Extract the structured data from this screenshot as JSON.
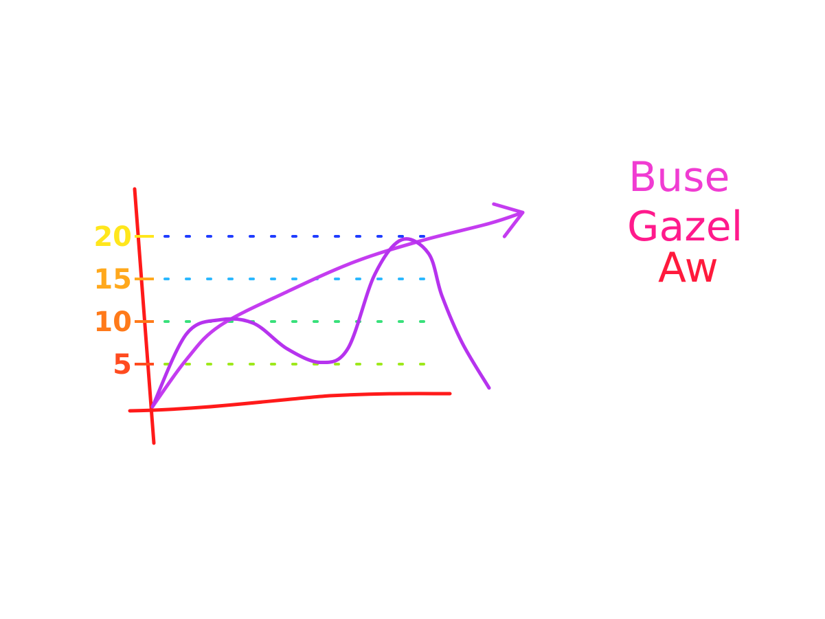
{
  "chart_data": {
    "type": "line",
    "title": "",
    "xlabel": "",
    "ylabel": "",
    "ylim": [
      0,
      22
    ],
    "yticks": [
      {
        "value": 5,
        "label": "5",
        "color": "#ff4b1f"
      },
      {
        "value": 10,
        "label": "10",
        "color": "#ff7a1a"
      },
      {
        "value": 15,
        "label": "15",
        "color": "#ffa81c"
      },
      {
        "value": 20,
        "label": "20",
        "color": "#ffe61c"
      }
    ],
    "grid": true,
    "grid_colors": {
      "5": "#9ee81c",
      "10": "#38e07a",
      "15": "#2bb8ff",
      "20": "#1f3cff"
    },
    "series": [
      {
        "name": "",
        "color": "#c43cf0",
        "arrow": true,
        "points": [
          [
            0,
            0
          ],
          [
            1,
            5.5
          ],
          [
            2,
            9.5
          ],
          [
            4,
            13.5
          ],
          [
            6,
            17
          ],
          [
            8,
            19.5
          ],
          [
            10,
            21.5
          ],
          [
            11,
            22.8
          ]
        ]
      },
      {
        "name": "",
        "color": "#b633ee",
        "arrow": false,
        "points": [
          [
            0,
            0
          ],
          [
            1,
            8.5
          ],
          [
            2,
            10.2
          ],
          [
            3,
            9.8
          ],
          [
            4,
            6.8
          ],
          [
            5,
            5.2
          ],
          [
            5.8,
            6.8
          ],
          [
            6.6,
            15.5
          ],
          [
            7.4,
            19.6
          ],
          [
            8.2,
            18
          ],
          [
            8.6,
            13
          ],
          [
            9.2,
            7.5
          ],
          [
            10,
            2.2
          ]
        ]
      }
    ],
    "axis_color": "#ff1a1a"
  },
  "annotation": {
    "lines": [
      "Buse",
      "Gazel",
      "Aw"
    ],
    "colors": [
      "#f03cd2",
      "#ff1a8c",
      "#ff1a3c"
    ]
  }
}
